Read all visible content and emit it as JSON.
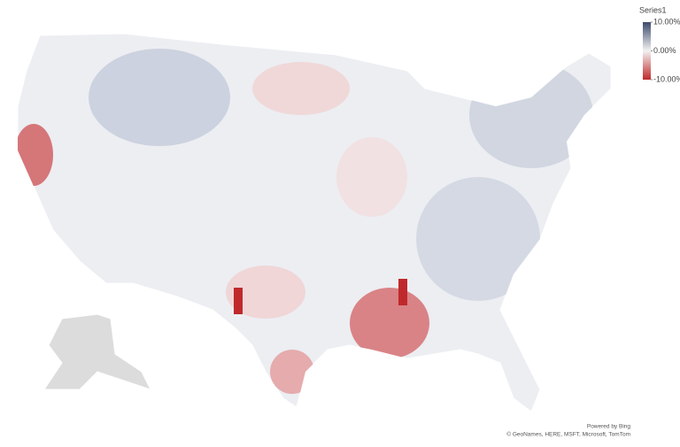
{
  "legend": {
    "title": "Series1",
    "range": [
      -10,
      10
    ],
    "ticks": [
      {
        "value": 10,
        "label": "10.00%"
      },
      {
        "value": 0,
        "label": "0.00%"
      },
      {
        "value": -10,
        "label": "-10.00%"
      }
    ],
    "colors": [
      "#c0292b",
      "#f2f2f2",
      "#3b4a6b"
    ]
  },
  "attribution": {
    "powered": "Powered by Bing",
    "copyright": "© GeoNames, HERE, MSFT, Microsoft, TomTom"
  }
}
